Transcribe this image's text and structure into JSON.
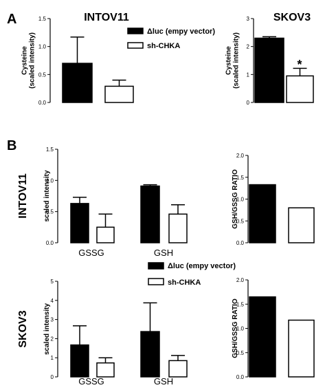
{
  "panels": {
    "a": "A",
    "b": "B"
  },
  "legend_top": {
    "entries": [
      "Δluc (empy vector)",
      "sh-CHKA"
    ]
  },
  "legend_bottom": {
    "entries": [
      "Δluc (empy vector)",
      "sh-CHKA"
    ]
  },
  "colors": {
    "series1": "#000000",
    "series2": "#ffffff"
  },
  "chart_data": [
    {
      "id": "a-intov11",
      "type": "bar",
      "title": "INTOV11",
      "ylabel": "Cysteine\n(scaled intensity)",
      "categories": [
        ""
      ],
      "series": [
        {
          "name": "Δluc (empy vector)",
          "values": [
            0.7
          ],
          "errors": [
            0.47
          ]
        },
        {
          "name": "sh-CHKA",
          "values": [
            0.29
          ],
          "errors": [
            0.11
          ]
        }
      ],
      "ylim": [
        0,
        1.5
      ],
      "yticks": [
        "0.0",
        "0.5",
        "1.0",
        "1.5"
      ],
      "grid": false
    },
    {
      "id": "a-skov3",
      "type": "bar",
      "title": "SKOV3",
      "ylabel": "Cysteine\n(scaled intensity)",
      "categories": [
        ""
      ],
      "series": [
        {
          "name": "Δluc (empy vector)",
          "values": [
            2.3
          ],
          "errors": [
            0.05
          ]
        },
        {
          "name": "sh-CHKA",
          "values": [
            0.95
          ],
          "errors": [
            0.27
          ]
        }
      ],
      "ylim": [
        0,
        3
      ],
      "yticks": [
        "0",
        "1",
        "2",
        "3"
      ],
      "annotation": "*",
      "grid": false
    },
    {
      "id": "b-intov11-bars",
      "type": "bar",
      "rowlabel": "INTOV11",
      "ylabel": "scaled intensity",
      "categories": [
        "GSSG",
        "GSH"
      ],
      "series": [
        {
          "name": "Δluc (empy vector)",
          "values": [
            0.63,
            0.91
          ],
          "errors": [
            0.1,
            0.02
          ]
        },
        {
          "name": "sh-CHKA",
          "values": [
            0.25,
            0.46
          ],
          "errors": [
            0.21,
            0.15
          ]
        }
      ],
      "ylim": [
        0,
        1.5
      ],
      "yticks": [
        "0.0",
        "0.5",
        "1.0",
        "1.5"
      ],
      "grid": false
    },
    {
      "id": "b-intov11-ratio",
      "type": "bar",
      "ylabel": "GSH/GSSG RATIO",
      "categories": [
        ""
      ],
      "series": [
        {
          "name": "Δluc (empy vector)",
          "values": [
            1.33
          ]
        },
        {
          "name": "sh-CHKA",
          "values": [
            0.8
          ]
        }
      ],
      "ylim": [
        0,
        2
      ],
      "yticks": [
        "0.0",
        "0.5",
        "1.0",
        "1.5",
        "2.0"
      ],
      "grid": false
    },
    {
      "id": "b-skov3-bars",
      "type": "bar",
      "rowlabel": "SKOV3",
      "ylabel": "scaled intensity",
      "categories": [
        "GSSG",
        "GSH"
      ],
      "series": [
        {
          "name": "Δluc (empy vector)",
          "values": [
            1.67,
            2.37
          ],
          "errors": [
            1.0,
            1.5
          ]
        },
        {
          "name": "sh-CHKA",
          "values": [
            0.73,
            0.85
          ],
          "errors": [
            0.27,
            0.27
          ]
        }
      ],
      "ylim": [
        0,
        5
      ],
      "yticks": [
        "0",
        "1",
        "2",
        "3",
        "4",
        "5"
      ],
      "grid": false
    },
    {
      "id": "b-skov3-ratio",
      "type": "bar",
      "ylabel": "GSH/GSSG RATIO",
      "categories": [
        ""
      ],
      "series": [
        {
          "name": "Δluc (empy vector)",
          "values": [
            1.65
          ]
        },
        {
          "name": "sh-CHKA",
          "values": [
            1.17
          ]
        }
      ],
      "ylim": [
        0,
        2
      ],
      "yticks": [
        "0.0",
        "0.5",
        "1.0",
        "1.5",
        "2.0"
      ],
      "grid": false
    }
  ]
}
